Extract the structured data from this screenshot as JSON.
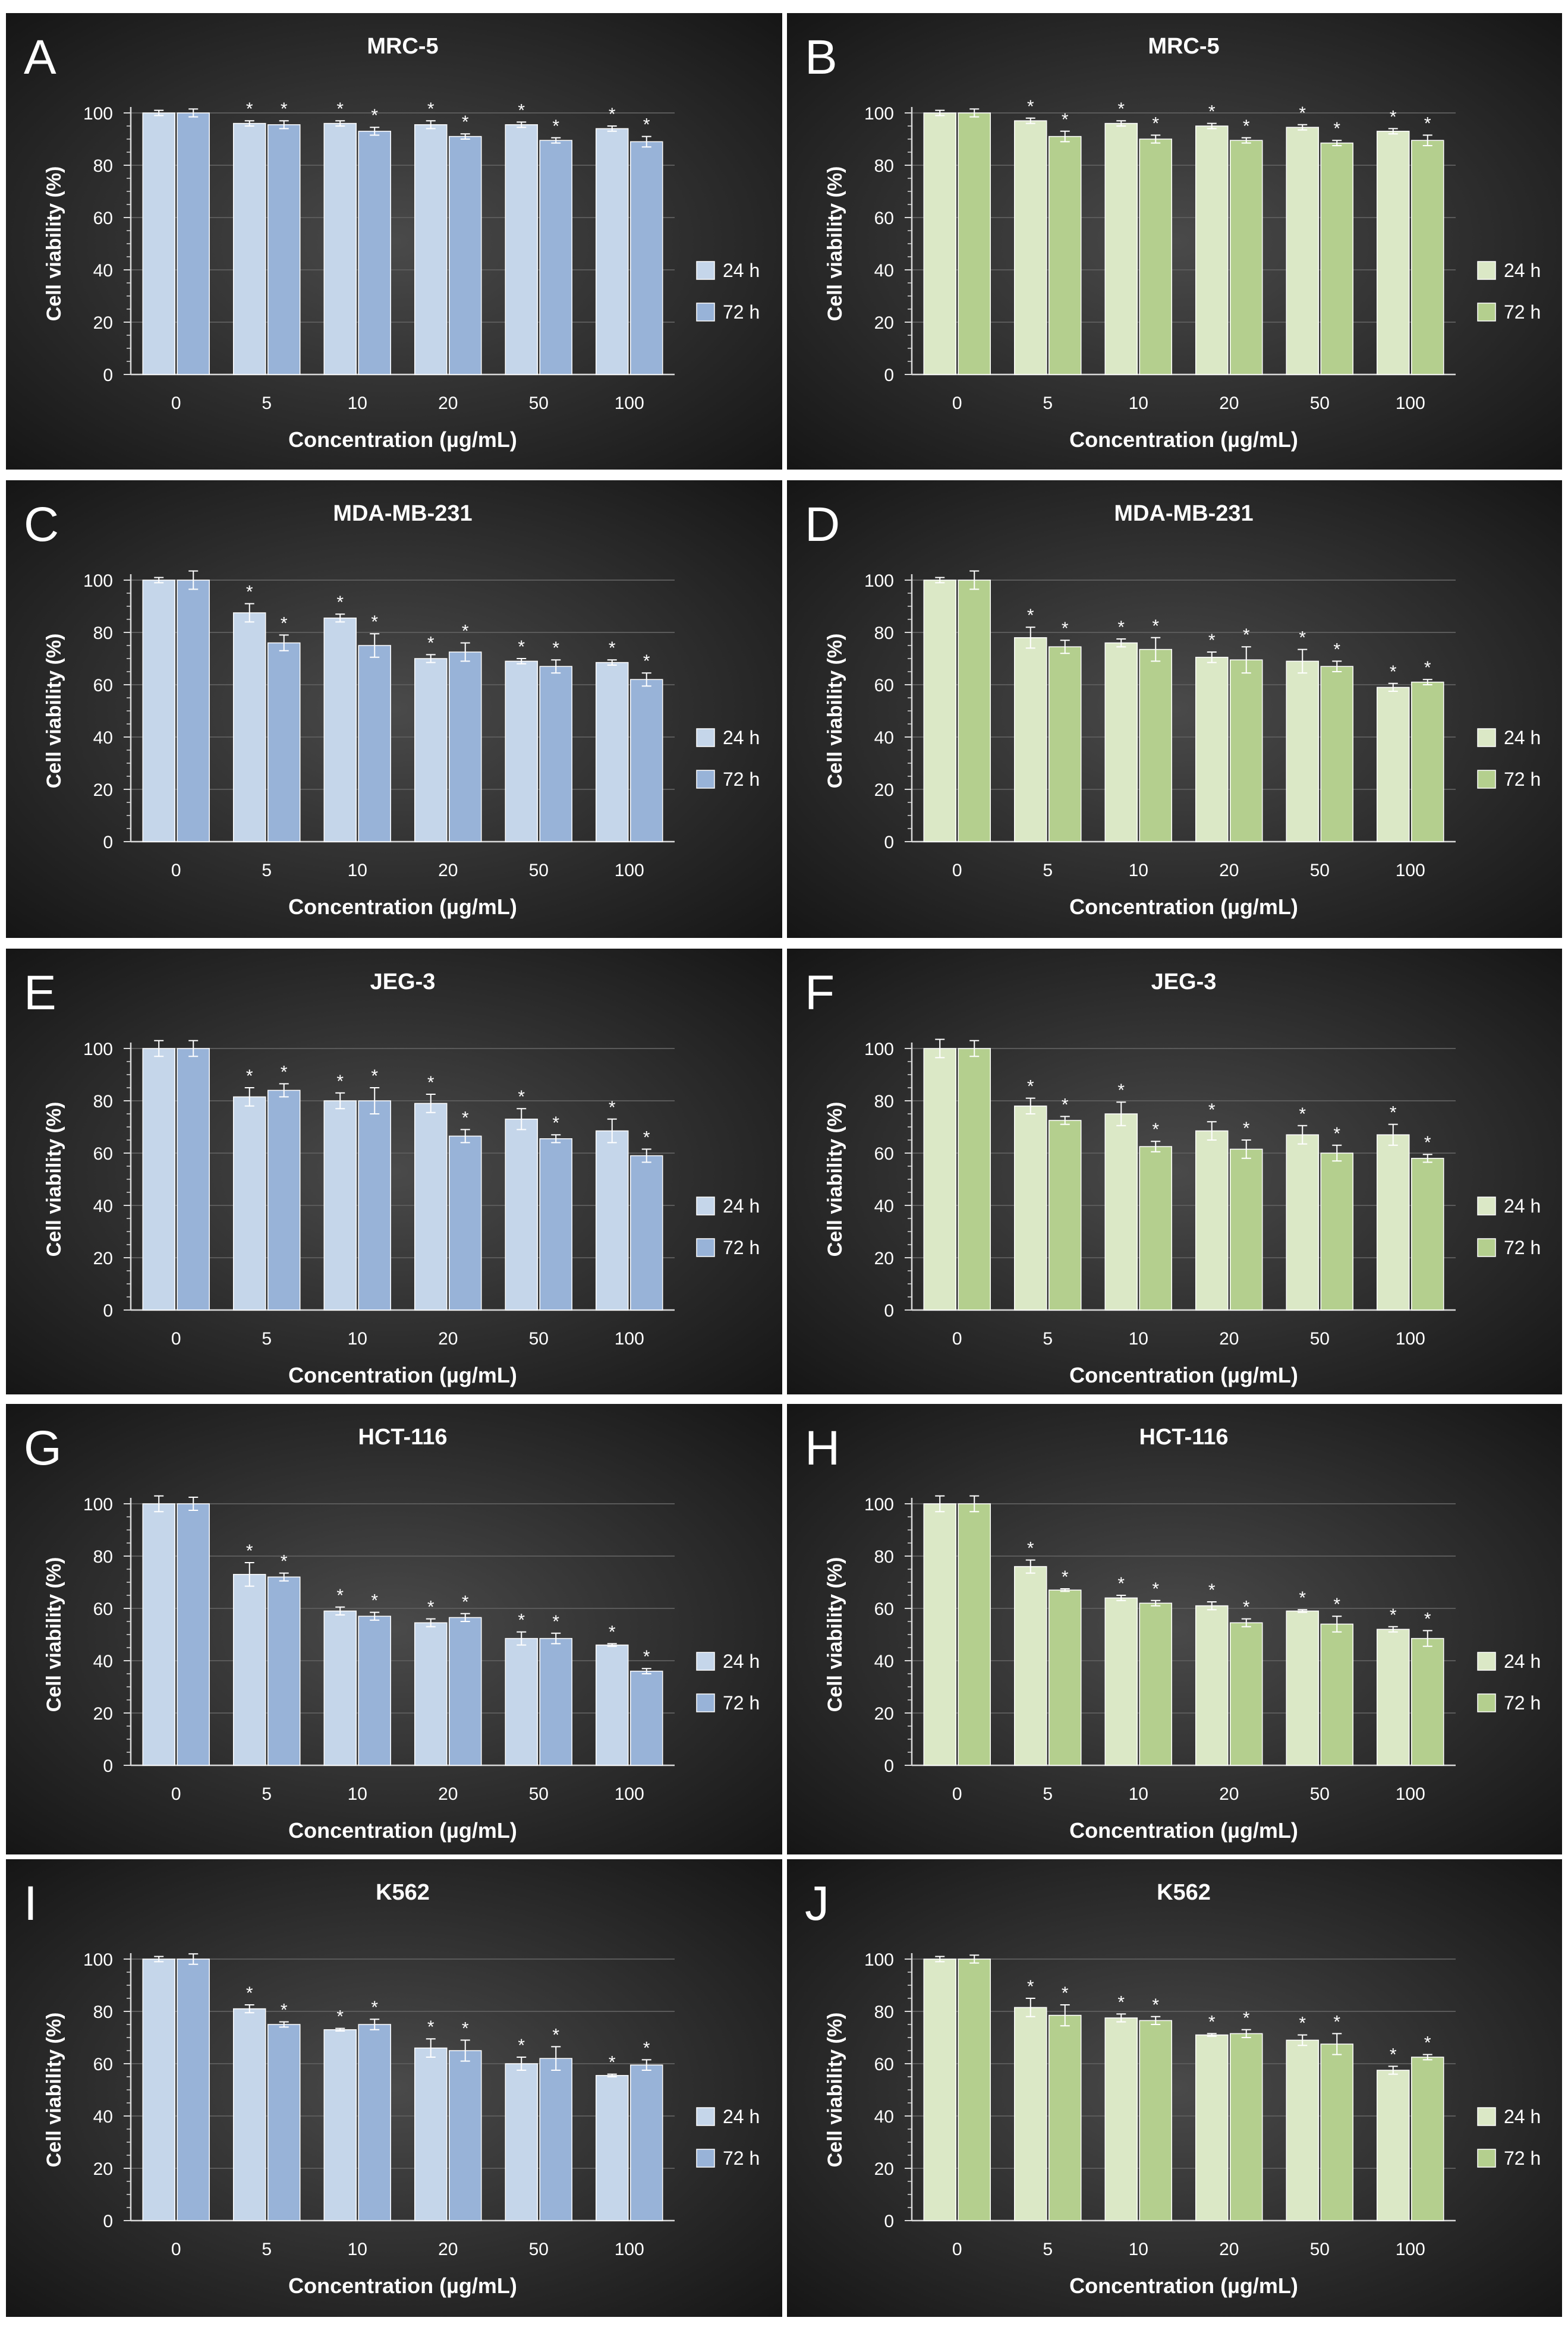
{
  "colors": {
    "background_center": "#4a4a4a",
    "background_edge": "#161616",
    "text": "#ffffff",
    "axis": "#d9d9d9",
    "gridline": "#5a5a5a",
    "bar_24h_blue": "#c5d6ea",
    "bar_72h_blue": "#98b3d8",
    "bar_24h_green": "#dbe8c6",
    "bar_72h_green": "#b4cf8e",
    "error_bar": "#ffffff"
  },
  "chart_data": [
    {
      "panel_letter": "A",
      "type": "bar",
      "title": "MRC-5",
      "xlabel": "Concentration (µg/mL)",
      "ylabel": "Cell viability (%)",
      "categories": [
        "0",
        "5",
        "10",
        "20",
        "50",
        "100"
      ],
      "ylim": [
        0,
        100
      ],
      "yticks": [
        "0",
        "20",
        "40",
        "60",
        "80",
        "100"
      ],
      "grid": true,
      "legend_position": "right",
      "palette": "blue",
      "annotation_symbol": "*",
      "series": [
        {
          "name": "24 h",
          "values": [
            100,
            96,
            96,
            95.5,
            95.5,
            94
          ],
          "errors": [
            1,
            1,
            1,
            1.5,
            1,
            1
          ],
          "significant": [
            false,
            true,
            true,
            true,
            true,
            true
          ]
        },
        {
          "name": "72 h",
          "values": [
            100,
            95.5,
            93,
            91,
            89.5,
            89
          ],
          "errors": [
            1.5,
            1.5,
            1.5,
            1,
            1,
            2
          ],
          "significant": [
            false,
            true,
            true,
            true,
            true,
            true
          ]
        }
      ]
    },
    {
      "panel_letter": "B",
      "type": "bar",
      "title": "MRC-5",
      "xlabel": "Concentration (µg/mL)",
      "ylabel": "Cell viability (%)",
      "categories": [
        "0",
        "5",
        "10",
        "20",
        "50",
        "100"
      ],
      "ylim": [
        0,
        100
      ],
      "yticks": [
        "0",
        "20",
        "40",
        "60",
        "80",
        "100"
      ],
      "grid": true,
      "legend_position": "right",
      "palette": "green",
      "annotation_symbol": "*",
      "series": [
        {
          "name": "24 h",
          "values": [
            100,
            97,
            96,
            95,
            94.5,
            93
          ],
          "errors": [
            1,
            1,
            1,
            1,
            1,
            1
          ],
          "significant": [
            false,
            true,
            true,
            true,
            true,
            true
          ]
        },
        {
          "name": "72 h",
          "values": [
            100,
            91,
            90,
            89.5,
            88.5,
            89.5
          ],
          "errors": [
            1.5,
            2,
            1.5,
            1,
            1,
            2
          ],
          "significant": [
            false,
            true,
            true,
            true,
            true,
            true
          ]
        }
      ]
    },
    {
      "panel_letter": "C",
      "type": "bar",
      "title": "MDA-MB-231",
      "xlabel": "Concentration (µg/mL)",
      "ylabel": "Cell viability (%)",
      "categories": [
        "0",
        "5",
        "10",
        "20",
        "50",
        "100"
      ],
      "ylim": [
        0,
        100
      ],
      "yticks": [
        "0",
        "20",
        "40",
        "60",
        "80",
        "100"
      ],
      "grid": true,
      "legend_position": "right",
      "palette": "blue",
      "annotation_symbol": "*",
      "series": [
        {
          "name": "24 h",
          "values": [
            100,
            87.5,
            85.5,
            70,
            69,
            68.5
          ],
          "errors": [
            1,
            3.5,
            1.5,
            1.5,
            1,
            1
          ],
          "significant": [
            false,
            true,
            true,
            true,
            true,
            true
          ]
        },
        {
          "name": "72 h",
          "values": [
            100,
            76,
            75,
            72.5,
            67,
            62
          ],
          "errors": [
            3.5,
            3,
            4.5,
            3.5,
            2.5,
            2.5
          ],
          "significant": [
            false,
            true,
            true,
            true,
            true,
            true
          ]
        }
      ]
    },
    {
      "panel_letter": "D",
      "type": "bar",
      "title": "MDA-MB-231",
      "xlabel": "Concentration (µg/mL)",
      "ylabel": "Cell viability (%)",
      "categories": [
        "0",
        "5",
        "10",
        "20",
        "50",
        "100"
      ],
      "ylim": [
        0,
        100
      ],
      "yticks": [
        "0",
        "20",
        "40",
        "60",
        "80",
        "100"
      ],
      "grid": true,
      "legend_position": "right",
      "palette": "green",
      "annotation_symbol": "*",
      "series": [
        {
          "name": "24 h",
          "values": [
            100,
            78,
            76,
            70.5,
            69,
            59
          ],
          "errors": [
            1,
            4,
            1.5,
            2,
            4.5,
            1.5
          ],
          "significant": [
            false,
            true,
            true,
            true,
            true,
            true
          ]
        },
        {
          "name": "72 h",
          "values": [
            100,
            74.5,
            73.5,
            69.5,
            67,
            61
          ],
          "errors": [
            3.5,
            2.5,
            4.5,
            5,
            2,
            1
          ],
          "significant": [
            false,
            true,
            true,
            true,
            true,
            true
          ]
        }
      ]
    },
    {
      "panel_letter": "E",
      "type": "bar",
      "title": "JEG-3",
      "xlabel": "Concentration (µg/mL)",
      "ylabel": "Cell viability (%)",
      "categories": [
        "0",
        "5",
        "10",
        "20",
        "50",
        "100"
      ],
      "ylim": [
        0,
        100
      ],
      "yticks": [
        "0",
        "20",
        "40",
        "60",
        "80",
        "100"
      ],
      "grid": true,
      "legend_position": "right",
      "palette": "blue",
      "annotation_symbol": "*",
      "series": [
        {
          "name": "24 h",
          "values": [
            100,
            81.5,
            80,
            79,
            73,
            68.5
          ],
          "errors": [
            3,
            3.5,
            3,
            3.5,
            4,
            4.5
          ],
          "significant": [
            false,
            true,
            true,
            true,
            true,
            true
          ]
        },
        {
          "name": "72 h",
          "values": [
            100,
            84,
            80,
            66.5,
            65.5,
            59
          ],
          "errors": [
            3,
            2.5,
            5,
            2.5,
            1.5,
            2.5
          ],
          "significant": [
            false,
            true,
            true,
            true,
            true,
            true
          ]
        }
      ]
    },
    {
      "panel_letter": "F",
      "type": "bar",
      "title": "JEG-3",
      "xlabel": "Concentration (µg/mL)",
      "ylabel": "Cell viability (%)",
      "categories": [
        "0",
        "5",
        "10",
        "20",
        "50",
        "100"
      ],
      "ylim": [
        0,
        100
      ],
      "yticks": [
        "0",
        "20",
        "40",
        "60",
        "80",
        "100"
      ],
      "grid": true,
      "legend_position": "right",
      "palette": "green",
      "annotation_symbol": "*",
      "series": [
        {
          "name": "24 h",
          "values": [
            100,
            78,
            75,
            68.5,
            67,
            67
          ],
          "errors": [
            3.5,
            3,
            4.5,
            3.5,
            3.5,
            4
          ],
          "significant": [
            false,
            true,
            true,
            true,
            true,
            true
          ]
        },
        {
          "name": "72 h",
          "values": [
            100,
            72.5,
            62.5,
            61.5,
            60,
            58
          ],
          "errors": [
            3,
            1.5,
            2,
            3.5,
            3,
            1.5
          ],
          "significant": [
            false,
            true,
            true,
            true,
            true,
            true
          ]
        }
      ]
    },
    {
      "panel_letter": "G",
      "type": "bar",
      "title": "HCT-116",
      "xlabel": "Concentration (µg/mL)",
      "ylabel": "Cell viability (%)",
      "categories": [
        "0",
        "5",
        "10",
        "20",
        "50",
        "100"
      ],
      "ylim": [
        0,
        100
      ],
      "yticks": [
        "0",
        "20",
        "40",
        "60",
        "80",
        "100"
      ],
      "grid": true,
      "legend_position": "right",
      "palette": "blue",
      "annotation_symbol": "*",
      "series": [
        {
          "name": "24 h",
          "values": [
            100,
            73,
            59,
            54.5,
            48.5,
            46
          ],
          "errors": [
            3,
            4.5,
            1.5,
            1.5,
            2.5,
            0.5
          ],
          "significant": [
            false,
            true,
            true,
            true,
            true,
            true
          ]
        },
        {
          "name": "72 h",
          "values": [
            100,
            72,
            57,
            56.5,
            48.5,
            36
          ],
          "errors": [
            2.5,
            1.5,
            1.5,
            1.5,
            2,
            1
          ],
          "significant": [
            false,
            true,
            true,
            true,
            true,
            true
          ]
        }
      ]
    },
    {
      "panel_letter": "H",
      "type": "bar",
      "title": "HCT-116",
      "xlabel": "Concentration (µg/mL)",
      "ylabel": "Cell viability (%)",
      "categories": [
        "0",
        "5",
        "10",
        "20",
        "50",
        "100"
      ],
      "ylim": [
        0,
        100
      ],
      "yticks": [
        "0",
        "20",
        "40",
        "60",
        "80",
        "100"
      ],
      "grid": true,
      "legend_position": "right",
      "palette": "green",
      "annotation_symbol": "*",
      "series": [
        {
          "name": "24 h",
          "values": [
            100,
            76,
            64,
            61,
            59,
            52
          ],
          "errors": [
            3,
            2.5,
            1,
            1.5,
            0.5,
            1
          ],
          "significant": [
            false,
            true,
            true,
            true,
            true,
            true
          ]
        },
        {
          "name": "72 h",
          "values": [
            100,
            67,
            62,
            54.5,
            54,
            48.5
          ],
          "errors": [
            3,
            0.5,
            1,
            1.5,
            3,
            3
          ],
          "significant": [
            false,
            true,
            true,
            true,
            true,
            true
          ]
        }
      ]
    },
    {
      "panel_letter": "I",
      "type": "bar",
      "title": "K562",
      "xlabel": "Concentration (µg/mL)",
      "ylabel": "Cell viability (%)",
      "categories": [
        "0",
        "5",
        "10",
        "20",
        "50",
        "100"
      ],
      "ylim": [
        0,
        100
      ],
      "yticks": [
        "0",
        "20",
        "40",
        "60",
        "80",
        "100"
      ],
      "grid": true,
      "legend_position": "right",
      "palette": "blue",
      "annotation_symbol": "*",
      "series": [
        {
          "name": "24 h",
          "values": [
            100,
            81,
            73,
            66,
            60,
            55.5
          ],
          "errors": [
            1,
            1.5,
            0.5,
            3.5,
            2.5,
            0.5
          ],
          "significant": [
            false,
            true,
            true,
            true,
            true,
            true
          ]
        },
        {
          "name": "72 h",
          "values": [
            100,
            75,
            75,
            65,
            62,
            59.5
          ],
          "errors": [
            2,
            1,
            2,
            4,
            4.5,
            2
          ],
          "significant": [
            false,
            true,
            true,
            true,
            true,
            true
          ]
        }
      ]
    },
    {
      "panel_letter": "J",
      "type": "bar",
      "title": "K562",
      "xlabel": "Concentration (µg/mL)",
      "ylabel": "Cell viability (%)",
      "categories": [
        "0",
        "5",
        "10",
        "20",
        "50",
        "100"
      ],
      "ylim": [
        0,
        100
      ],
      "yticks": [
        "0",
        "20",
        "40",
        "60",
        "80",
        "100"
      ],
      "grid": true,
      "legend_position": "right",
      "palette": "green",
      "annotation_symbol": "*",
      "series": [
        {
          "name": "24 h",
          "values": [
            100,
            81.5,
            77.5,
            71,
            69,
            57.5
          ],
          "errors": [
            1,
            3.5,
            1.5,
            0.5,
            2,
            1.5
          ],
          "significant": [
            false,
            true,
            true,
            true,
            true,
            true
          ]
        },
        {
          "name": "72 h",
          "values": [
            100,
            78.5,
            76.5,
            71.5,
            67.5,
            62.5
          ],
          "errors": [
            1.5,
            4,
            1.5,
            1.5,
            4,
            1
          ],
          "significant": [
            false,
            true,
            true,
            true,
            true,
            true
          ]
        }
      ]
    }
  ]
}
